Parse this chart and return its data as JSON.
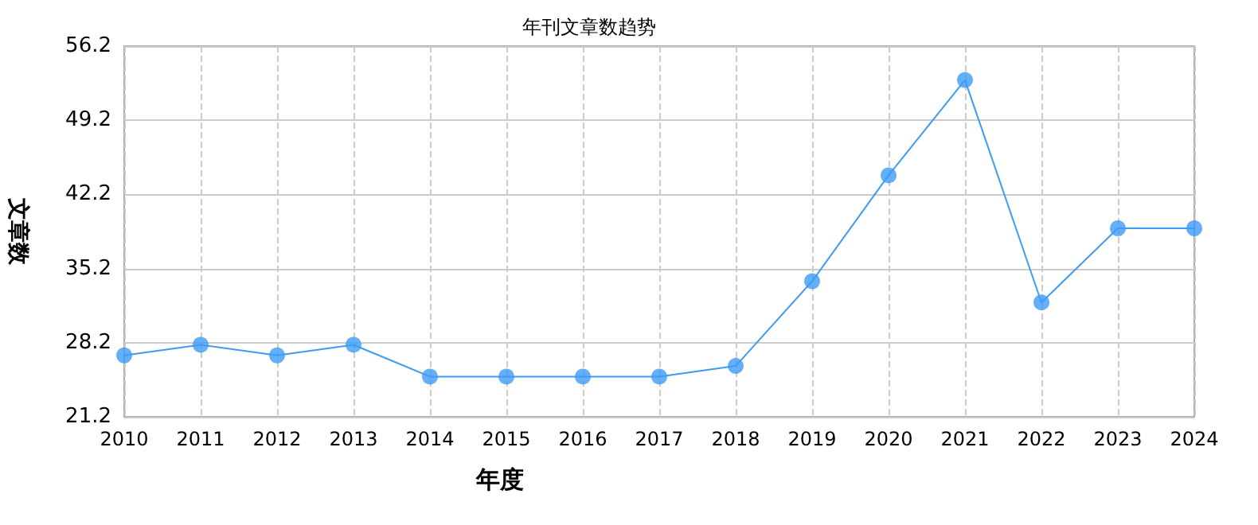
{
  "chart_data": {
    "type": "line",
    "title": "年刊文章数趋势",
    "xlabel": "年度",
    "ylabel": "文章数",
    "categories": [
      "2010",
      "2011",
      "2012",
      "2013",
      "2014",
      "2015",
      "2016",
      "2017",
      "2018",
      "2019",
      "2020",
      "2021",
      "2022",
      "2023",
      "2024"
    ],
    "series": [
      {
        "color": "#3d9bf5",
        "values": [
          27,
          28,
          27,
          28,
          25,
          25,
          25,
          25,
          26,
          34,
          44,
          53,
          32,
          39,
          39
        ]
      }
    ],
    "ylim": [
      21.2,
      56.2
    ],
    "yticks": [
      21.2,
      28.2,
      35.2,
      42.2,
      49.2,
      56.2
    ],
    "grid": true,
    "marker": "circle",
    "line_style": "solid"
  }
}
